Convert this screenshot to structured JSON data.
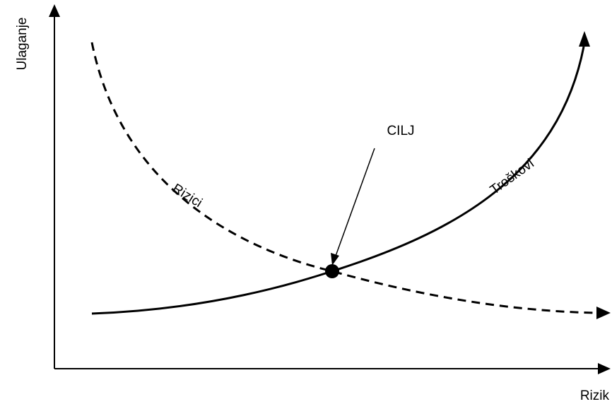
{
  "axes": {
    "x_label": "Rizik",
    "y_label": "Ulaganje"
  },
  "curves": {
    "risks_label": "Rizici",
    "costs_label": "Troškovi"
  },
  "target": {
    "label": "CILJ"
  },
  "colors": {
    "ink": "#000000",
    "background": "#ffffff"
  }
}
